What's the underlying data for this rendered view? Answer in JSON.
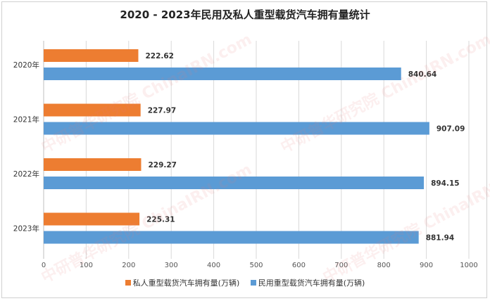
{
  "chart_data": {
    "type": "bar",
    "orientation": "horizontal",
    "title": "2020 - 2023年民用及私人重型载货汽车拥有量统计",
    "categories": [
      "2020年",
      "2021年",
      "2022年",
      "2023年"
    ],
    "series": [
      {
        "name": "私人重型载货汽车拥有量(万辆)",
        "color": "#ED7D31",
        "values": [
          222.62,
          227.97,
          229.27,
          225.31
        ]
      },
      {
        "name": "民用重型载货汽车拥有量(万辆)",
        "color": "#5B9BD5",
        "values": [
          840.64,
          907.09,
          894.15,
          881.94
        ]
      }
    ],
    "xlim": [
      0,
      1000
    ],
    "xticks": [
      0,
      100,
      200,
      300,
      400,
      500,
      600,
      700,
      800,
      900,
      1000
    ],
    "grid": true,
    "legend": "bottom"
  },
  "watermark": "中研普华研究院 ChinaIRN.com"
}
